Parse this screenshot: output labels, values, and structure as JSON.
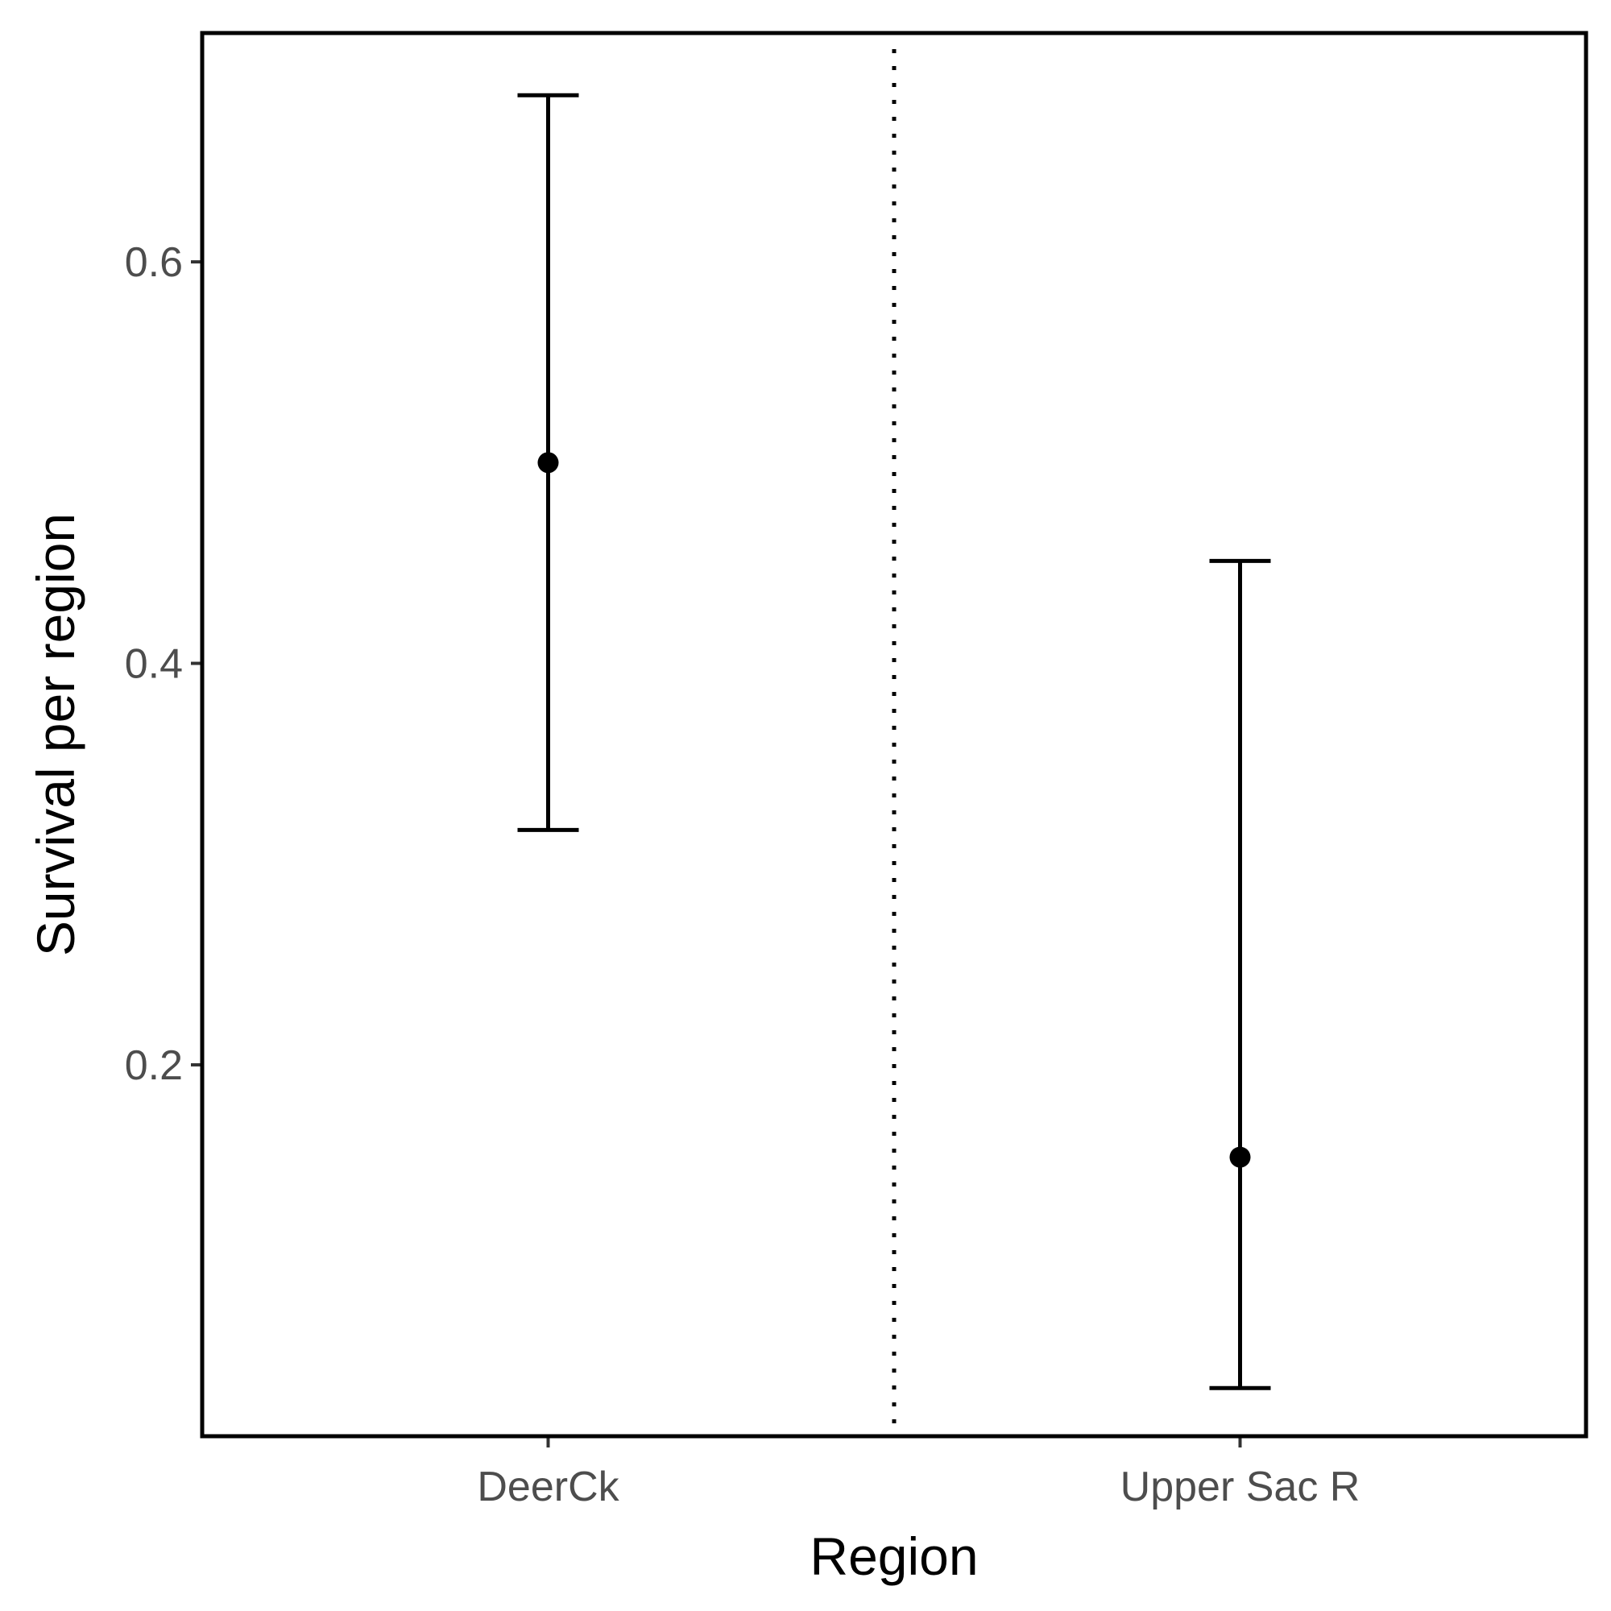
{
  "chart_data": {
    "type": "errorbar",
    "title": "",
    "xlabel": "Region",
    "ylabel": "Survival per region",
    "categories": [
      "DeerCk",
      "Upper Sac R"
    ],
    "estimate": [
      0.5,
      0.154
    ],
    "lower": [
      0.317,
      0.039
    ],
    "upper": [
      0.683,
      0.451
    ],
    "ylim": [
      0.015,
      0.714
    ],
    "yticks": [
      0.2,
      0.4,
      0.6
    ],
    "ytick_labels": [
      "0.2",
      "0.4",
      "0.6"
    ],
    "divider": "dotted vertical line between categories",
    "grid": false,
    "legend": "none",
    "color": "#000000"
  }
}
